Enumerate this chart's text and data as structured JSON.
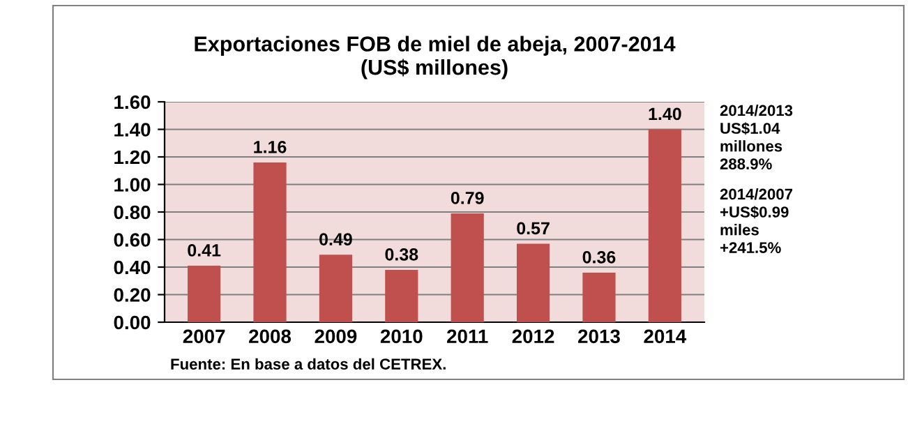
{
  "chart_data": {
    "type": "bar",
    "title": "Exportaciones FOB de miel de abeja, 2007-2014\n(US$ millones)",
    "categories": [
      "2007",
      "2008",
      "2009",
      "2010",
      "2011",
      "2012",
      "2013",
      "2014"
    ],
    "values": [
      0.41,
      1.16,
      0.49,
      0.38,
      0.79,
      0.57,
      0.36,
      1.4
    ],
    "value_labels": [
      "0.41",
      "1.16",
      "0.49",
      "0.38",
      "0.79",
      "0.57",
      "0.36",
      "1.40"
    ],
    "color": "#c0504d",
    "ylim": [
      0,
      1.6
    ],
    "yticks": [
      {
        "value": 0,
        "label": "0.00"
      },
      {
        "value": 0.2,
        "label": "0.20"
      },
      {
        "value": 0.4,
        "label": "0.40"
      },
      {
        "value": 0.6,
        "label": "0.60"
      },
      {
        "value": 0.8,
        "label": "0.80"
      },
      {
        "value": 1.0,
        "label": "1.00"
      },
      {
        "value": 1.2,
        "label": "1.20"
      },
      {
        "value": 1.4,
        "label": "1.40"
      },
      {
        "value": 1.6,
        "label": "1.60"
      }
    ],
    "grid": "y",
    "annotations": [
      "2014/2013\nUS$1.04\nmillones\n288.9%",
      "2014/2007\n+US$0.99\nmiles\n+241.5%",
      "Fuente: En base a datos del CETREX."
    ]
  }
}
